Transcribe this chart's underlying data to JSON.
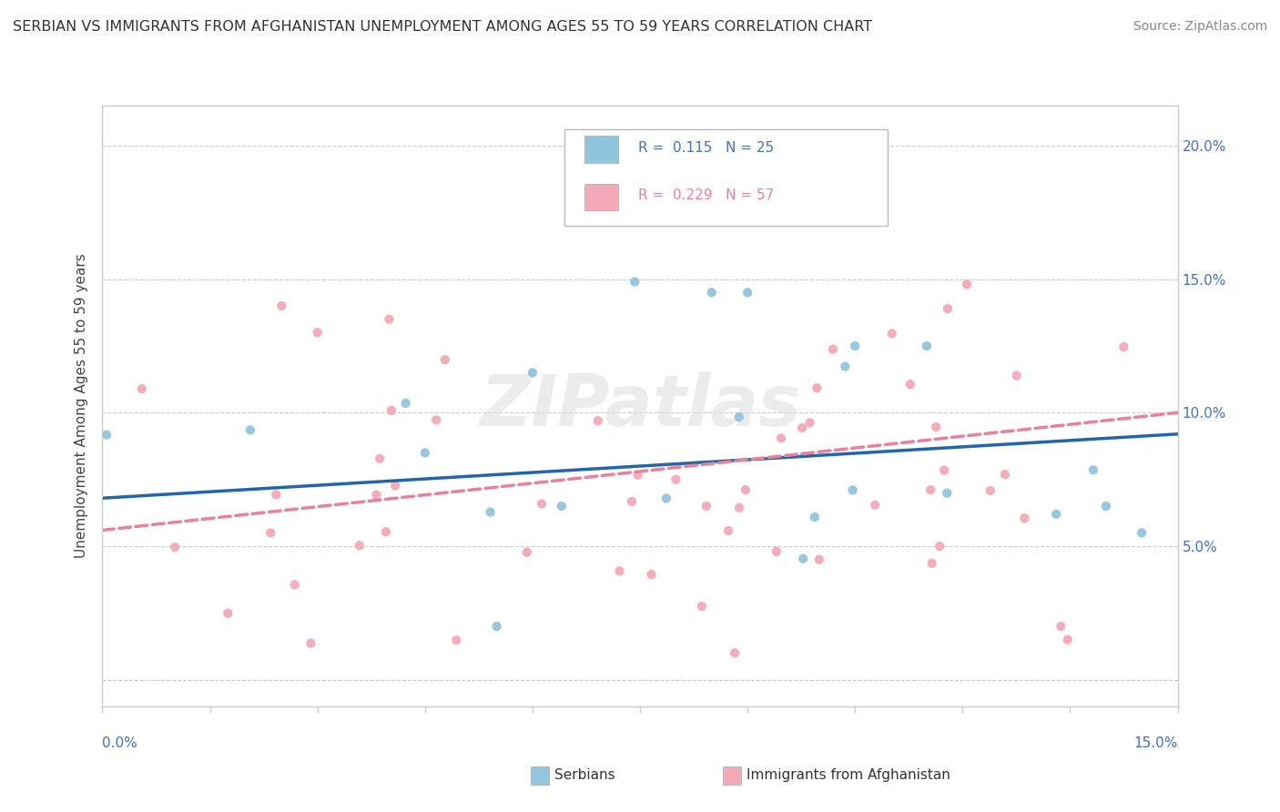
{
  "title": "SERBIAN VS IMMIGRANTS FROM AFGHANISTAN UNEMPLOYMENT AMONG AGES 55 TO 59 YEARS CORRELATION CHART",
  "source": "Source: ZipAtlas.com",
  "ylabel": "Unemployment Among Ages 55 to 59 years",
  "xmin": 0.0,
  "xmax": 0.15,
  "ymin": -0.01,
  "ymax": 0.215,
  "r_serbian": 0.115,
  "n_serbian": 25,
  "r_afghan": 0.229,
  "n_afghan": 57,
  "serbian_color": "#92c5de",
  "afghan_color": "#f4a9b8",
  "serbian_line_color": "#2166ac",
  "afghan_line_color": "#e8829a",
  "legend_label_serbian": "Serbians",
  "legend_label_afghan": "Immigrants from Afghanistan",
  "watermark": "ZIPatlas",
  "serb_line_y0": 0.068,
  "serb_line_y1": 0.092,
  "afgh_line_y0": 0.056,
  "afgh_line_y1": 0.1
}
